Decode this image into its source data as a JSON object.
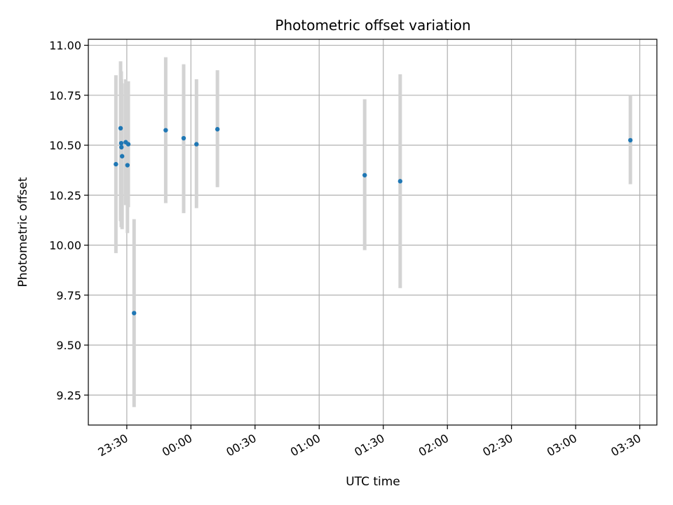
{
  "chart_data": {
    "type": "scatter",
    "title": "Photometric offset variation",
    "xlabel": "UTC time",
    "ylabel": "Photometric offset",
    "x_format": "HH:MM",
    "xlim": [
      "23:12",
      "03:38"
    ],
    "ylim": [
      9.1,
      11.03
    ],
    "grid": true,
    "x_ticks": [
      "23:30",
      "00:00",
      "00:30",
      "01:00",
      "01:30",
      "02:00",
      "02:30",
      "03:00",
      "03:30"
    ],
    "y_ticks": [
      "9.25",
      "9.50",
      "9.75",
      "10.00",
      "10.25",
      "10.50",
      "10.75",
      "11.00"
    ],
    "colors": {
      "points": "#1f77b4",
      "errorbars": "#d3d3d3",
      "grid": "#b0b0b0"
    },
    "points": [
      {
        "x": "23:24.9",
        "y": 10.405,
        "ylo": 9.96,
        "yhi": 10.85
      },
      {
        "x": "23:27.1",
        "y": 10.585,
        "ylo": 10.12,
        "yhi": 10.92
      },
      {
        "x": "23:27.4",
        "y": 10.51,
        "ylo": 10.09,
        "yhi": 10.87
      },
      {
        "x": "23:27.5",
        "y": 10.49,
        "ylo": 10.15,
        "yhi": 10.83
      },
      {
        "x": "23:27.8",
        "y": 10.445,
        "ylo": 10.08,
        "yhi": 10.81
      },
      {
        "x": "23:29.5",
        "y": 10.515,
        "ylo": 10.2,
        "yhi": 10.83
      },
      {
        "x": "23:30.3",
        "y": 10.4,
        "ylo": 10.06,
        "yhi": 10.73
      },
      {
        "x": "23:30.7",
        "y": 10.505,
        "ylo": 10.19,
        "yhi": 10.82
      },
      {
        "x": "23:33.4",
        "y": 9.66,
        "ylo": 9.19,
        "yhi": 10.13
      },
      {
        "x": "23:48.2",
        "y": 10.575,
        "ylo": 10.21,
        "yhi": 10.94
      },
      {
        "x": "23:56.6",
        "y": 10.535,
        "ylo": 10.16,
        "yhi": 10.905
      },
      {
        "x": "00:02.6",
        "y": 10.505,
        "ylo": 10.185,
        "yhi": 10.83
      },
      {
        "x": "00:12.4",
        "y": 10.58,
        "ylo": 10.29,
        "yhi": 10.875
      },
      {
        "x": "01:21.3",
        "y": 10.35,
        "ylo": 9.975,
        "yhi": 10.73
      },
      {
        "x": "01:37.9",
        "y": 10.32,
        "ylo": 9.785,
        "yhi": 10.855
      },
      {
        "x": "03:25.6",
        "y": 10.525,
        "ylo": 10.305,
        "yhi": 10.75
      }
    ]
  }
}
